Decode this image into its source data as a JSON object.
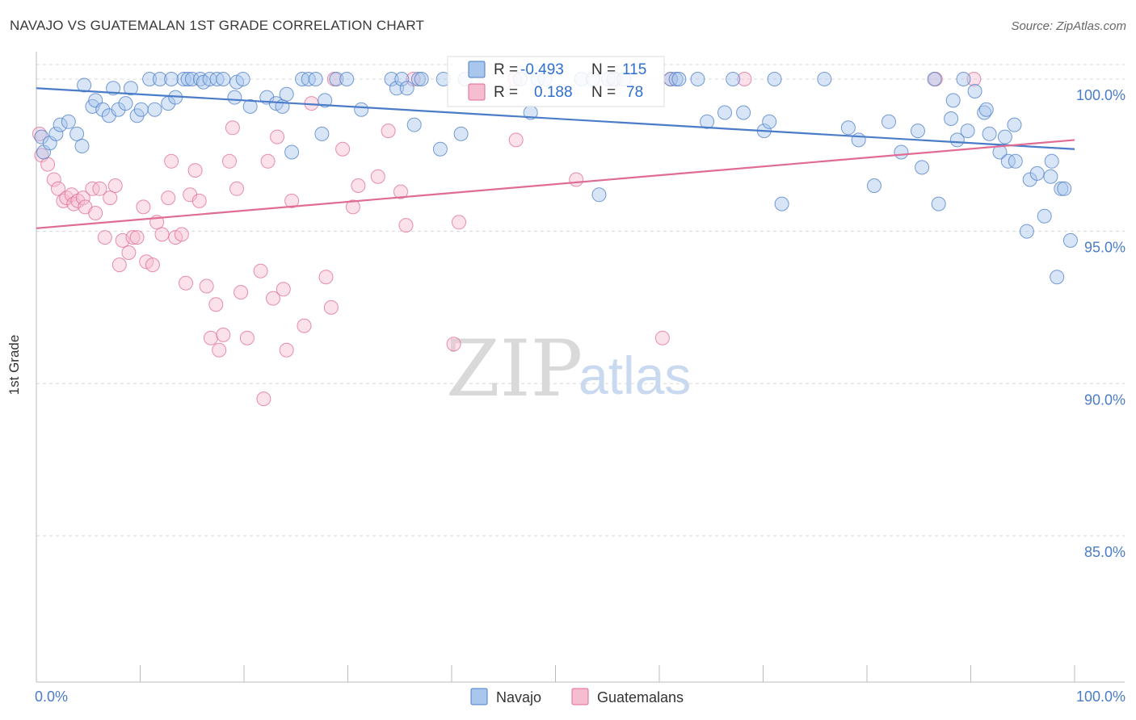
{
  "title": "NAVAJO VS GUATEMALAN 1ST GRADE CORRELATION CHART",
  "source": "Source: ZipAtlas.com",
  "watermark": {
    "zip": "ZIP",
    "atlas": "atlas"
  },
  "colors": {
    "navajo": "#4a7cc8",
    "navajo_fill": "#a9c6ec",
    "guatemalans": "#e06b93",
    "guatemalans_fill": "#f6bccf",
    "axis_text": "#4a7cc8",
    "grid": "#d8d8d8"
  },
  "stats": [
    {
      "r_label": "R =",
      "r_value": "-0.493",
      "n_label": "N =",
      "n_value": "115"
    },
    {
      "r_label": "R =",
      "r_value": "0.188",
      "n_label": "N =",
      "n_value": "78"
    }
  ],
  "chart_data": {
    "type": "scatter",
    "title": "NAVAJO VS GUATEMALAN 1ST GRADE CORRELATION CHART",
    "xlabel": "",
    "ylabel": "1st Grade",
    "xlim": [
      0,
      100
    ],
    "ylim": [
      80.2,
      100.9
    ],
    "x_tick_labels": [
      "0.0%",
      "100.0%"
    ],
    "y_ticks": [
      100,
      95,
      90,
      85
    ],
    "y_tick_labels": [
      "100.0%",
      "95.0%",
      "90.0%",
      "85.0%"
    ],
    "grid": true,
    "legend_position": "bottom",
    "series": [
      {
        "name": "Navajo",
        "color": "#4a7cc8",
        "trend": {
          "x": [
            0,
            100
          ],
          "y": [
            99.7,
            97.7
          ]
        },
        "points": [
          [
            0.5,
            98.1
          ],
          [
            0.7,
            97.6
          ],
          [
            1.3,
            97.9
          ],
          [
            1.9,
            98.2
          ],
          [
            2.3,
            98.5
          ],
          [
            3.1,
            98.6
          ],
          [
            3.9,
            98.2
          ],
          [
            4.4,
            97.8
          ],
          [
            4.6,
            99.8
          ],
          [
            5.4,
            99.1
          ],
          [
            5.7,
            99.3
          ],
          [
            6.4,
            99.0
          ],
          [
            7.0,
            98.8
          ],
          [
            7.4,
            99.7
          ],
          [
            7.9,
            99.0
          ],
          [
            8.6,
            99.2
          ],
          [
            9.1,
            99.7
          ],
          [
            9.7,
            98.8
          ],
          [
            10.1,
            99.0
          ],
          [
            10.9,
            100.0
          ],
          [
            11.4,
            99.0
          ],
          [
            11.9,
            100.0
          ],
          [
            12.7,
            99.2
          ],
          [
            13.0,
            100.0
          ],
          [
            13.4,
            99.4
          ],
          [
            14.2,
            100.0
          ],
          [
            14.6,
            100.0
          ],
          [
            15.0,
            100.0
          ],
          [
            15.8,
            100.0
          ],
          [
            16.1,
            99.9
          ],
          [
            16.7,
            100.0
          ],
          [
            17.4,
            100.0
          ],
          [
            18.0,
            100.0
          ],
          [
            19.1,
            99.4
          ],
          [
            19.3,
            99.9
          ],
          [
            19.9,
            100.0
          ],
          [
            20.6,
            99.1
          ],
          [
            22.2,
            99.4
          ],
          [
            23.1,
            99.2
          ],
          [
            23.7,
            99.1
          ],
          [
            24.1,
            99.5
          ],
          [
            24.6,
            97.6
          ],
          [
            25.6,
            100.0
          ],
          [
            26.2,
            100.0
          ],
          [
            26.9,
            100.0
          ],
          [
            27.5,
            98.2
          ],
          [
            27.8,
            99.3
          ],
          [
            28.9,
            100.0
          ],
          [
            29.9,
            100.0
          ],
          [
            31.3,
            99.0
          ],
          [
            34.2,
            100.0
          ],
          [
            34.7,
            99.7
          ],
          [
            35.2,
            100.0
          ],
          [
            35.7,
            99.7
          ],
          [
            36.4,
            98.5
          ],
          [
            36.8,
            100.0
          ],
          [
            37.1,
            100.0
          ],
          [
            38.9,
            97.7
          ],
          [
            39.2,
            100.0
          ],
          [
            40.9,
            98.2
          ],
          [
            41.3,
            100.0
          ],
          [
            46.6,
            100.0
          ],
          [
            47.6,
            98.9
          ],
          [
            48.3,
            100.0
          ],
          [
            49.0,
            100.0
          ],
          [
            52.5,
            100.0
          ],
          [
            53.6,
            100.0
          ],
          [
            54.2,
            96.2
          ],
          [
            55.1,
            100.0
          ],
          [
            55.6,
            100.0
          ],
          [
            56.6,
            100.0
          ],
          [
            61.1,
            100.0
          ],
          [
            61.6,
            100.0
          ],
          [
            61.9,
            100.0
          ],
          [
            63.7,
            100.0
          ],
          [
            64.6,
            98.6
          ],
          [
            66.3,
            98.9
          ],
          [
            67.1,
            100.0
          ],
          [
            68.1,
            98.9
          ],
          [
            70.1,
            98.3
          ],
          [
            70.6,
            98.6
          ],
          [
            71.1,
            100.0
          ],
          [
            71.8,
            95.9
          ],
          [
            75.9,
            100.0
          ],
          [
            78.2,
            98.4
          ],
          [
            79.2,
            98.0
          ],
          [
            80.7,
            96.5
          ],
          [
            82.1,
            98.6
          ],
          [
            83.3,
            97.6
          ],
          [
            84.9,
            98.3
          ],
          [
            85.3,
            97.1
          ],
          [
            86.5,
            100.0
          ],
          [
            86.9,
            95.9
          ],
          [
            88.1,
            98.7
          ],
          [
            88.3,
            99.3
          ],
          [
            88.7,
            98.0
          ],
          [
            89.3,
            100.0
          ],
          [
            89.7,
            98.3
          ],
          [
            90.4,
            99.6
          ],
          [
            91.3,
            98.9
          ],
          [
            91.5,
            99.0
          ],
          [
            91.8,
            98.2
          ],
          [
            92.8,
            97.6
          ],
          [
            93.3,
            98.1
          ],
          [
            93.6,
            97.3
          ],
          [
            94.2,
            98.5
          ],
          [
            94.3,
            97.3
          ],
          [
            95.4,
            95.0
          ],
          [
            95.7,
            96.7
          ],
          [
            96.4,
            96.9
          ],
          [
            97.1,
            95.5
          ],
          [
            97.7,
            96.8
          ],
          [
            97.8,
            97.3
          ],
          [
            98.3,
            93.5
          ],
          [
            98.7,
            96.4
          ],
          [
            99.0,
            96.4
          ],
          [
            99.6,
            94.7
          ]
        ]
      },
      {
        "name": "Guatemalans",
        "color": "#e06b93",
        "trend": {
          "x": [
            0,
            100
          ],
          "y": [
            95.1,
            98.0
          ]
        },
        "points": [
          [
            0.3,
            98.2
          ],
          [
            0.5,
            97.5
          ],
          [
            1.1,
            97.2
          ],
          [
            1.7,
            96.7
          ],
          [
            2.1,
            96.4
          ],
          [
            2.6,
            96.0
          ],
          [
            2.9,
            96.1
          ],
          [
            3.4,
            96.2
          ],
          [
            3.6,
            95.9
          ],
          [
            4.0,
            96.0
          ],
          [
            4.5,
            96.1
          ],
          [
            4.7,
            95.8
          ],
          [
            5.4,
            96.4
          ],
          [
            5.7,
            95.6
          ],
          [
            6.1,
            96.4
          ],
          [
            6.6,
            94.8
          ],
          [
            7.1,
            96.1
          ],
          [
            7.6,
            96.5
          ],
          [
            8.0,
            93.9
          ],
          [
            8.3,
            94.7
          ],
          [
            8.9,
            94.3
          ],
          [
            9.3,
            94.8
          ],
          [
            9.7,
            94.8
          ],
          [
            10.3,
            95.8
          ],
          [
            10.6,
            94.0
          ],
          [
            11.2,
            93.9
          ],
          [
            11.6,
            95.3
          ],
          [
            12.1,
            94.9
          ],
          [
            12.7,
            96.1
          ],
          [
            13.0,
            97.3
          ],
          [
            13.4,
            94.8
          ],
          [
            14.0,
            94.9
          ],
          [
            14.4,
            93.3
          ],
          [
            14.8,
            96.2
          ],
          [
            15.3,
            97.0
          ],
          [
            15.7,
            96.0
          ],
          [
            16.4,
            93.2
          ],
          [
            16.8,
            91.5
          ],
          [
            17.3,
            92.6
          ],
          [
            17.6,
            91.1
          ],
          [
            18.0,
            91.6
          ],
          [
            18.6,
            97.3
          ],
          [
            18.9,
            98.4
          ],
          [
            19.3,
            96.4
          ],
          [
            19.7,
            93.0
          ],
          [
            20.3,
            91.5
          ],
          [
            21.6,
            93.7
          ],
          [
            22.3,
            97.3
          ],
          [
            22.8,
            92.8
          ],
          [
            23.2,
            98.1
          ],
          [
            23.8,
            93.1
          ],
          [
            24.1,
            91.1
          ],
          [
            24.6,
            96.0
          ],
          [
            25.8,
            91.9
          ],
          [
            26.5,
            99.2
          ],
          [
            27.9,
            93.5
          ],
          [
            28.4,
            92.5
          ],
          [
            29.5,
            97.7
          ],
          [
            30.5,
            95.8
          ],
          [
            31.0,
            96.5
          ],
          [
            32.9,
            96.8
          ],
          [
            33.9,
            98.3
          ],
          [
            35.1,
            96.3
          ],
          [
            35.6,
            95.2
          ],
          [
            40.2,
            91.3
          ],
          [
            40.7,
            95.3
          ],
          [
            46.2,
            98.0
          ],
          [
            52.0,
            96.7
          ],
          [
            60.3,
            91.5
          ],
          [
            21.9,
            89.5
          ],
          [
            86.6,
            100.0
          ],
          [
            90.3,
            100.0
          ],
          [
            28.7,
            100.0
          ],
          [
            36.3,
            100.0
          ],
          [
            46.1,
            100.0
          ],
          [
            55.8,
            100.0
          ],
          [
            61.1,
            100.0
          ],
          [
            68.2,
            100.0
          ]
        ]
      }
    ]
  },
  "legend": [
    {
      "label": "Navajo",
      "color": "#a9c6ec",
      "stroke": "#4a7cc8"
    },
    {
      "label": "Guatemalans",
      "color": "#f6bccf",
      "stroke": "#e06b93"
    }
  ]
}
